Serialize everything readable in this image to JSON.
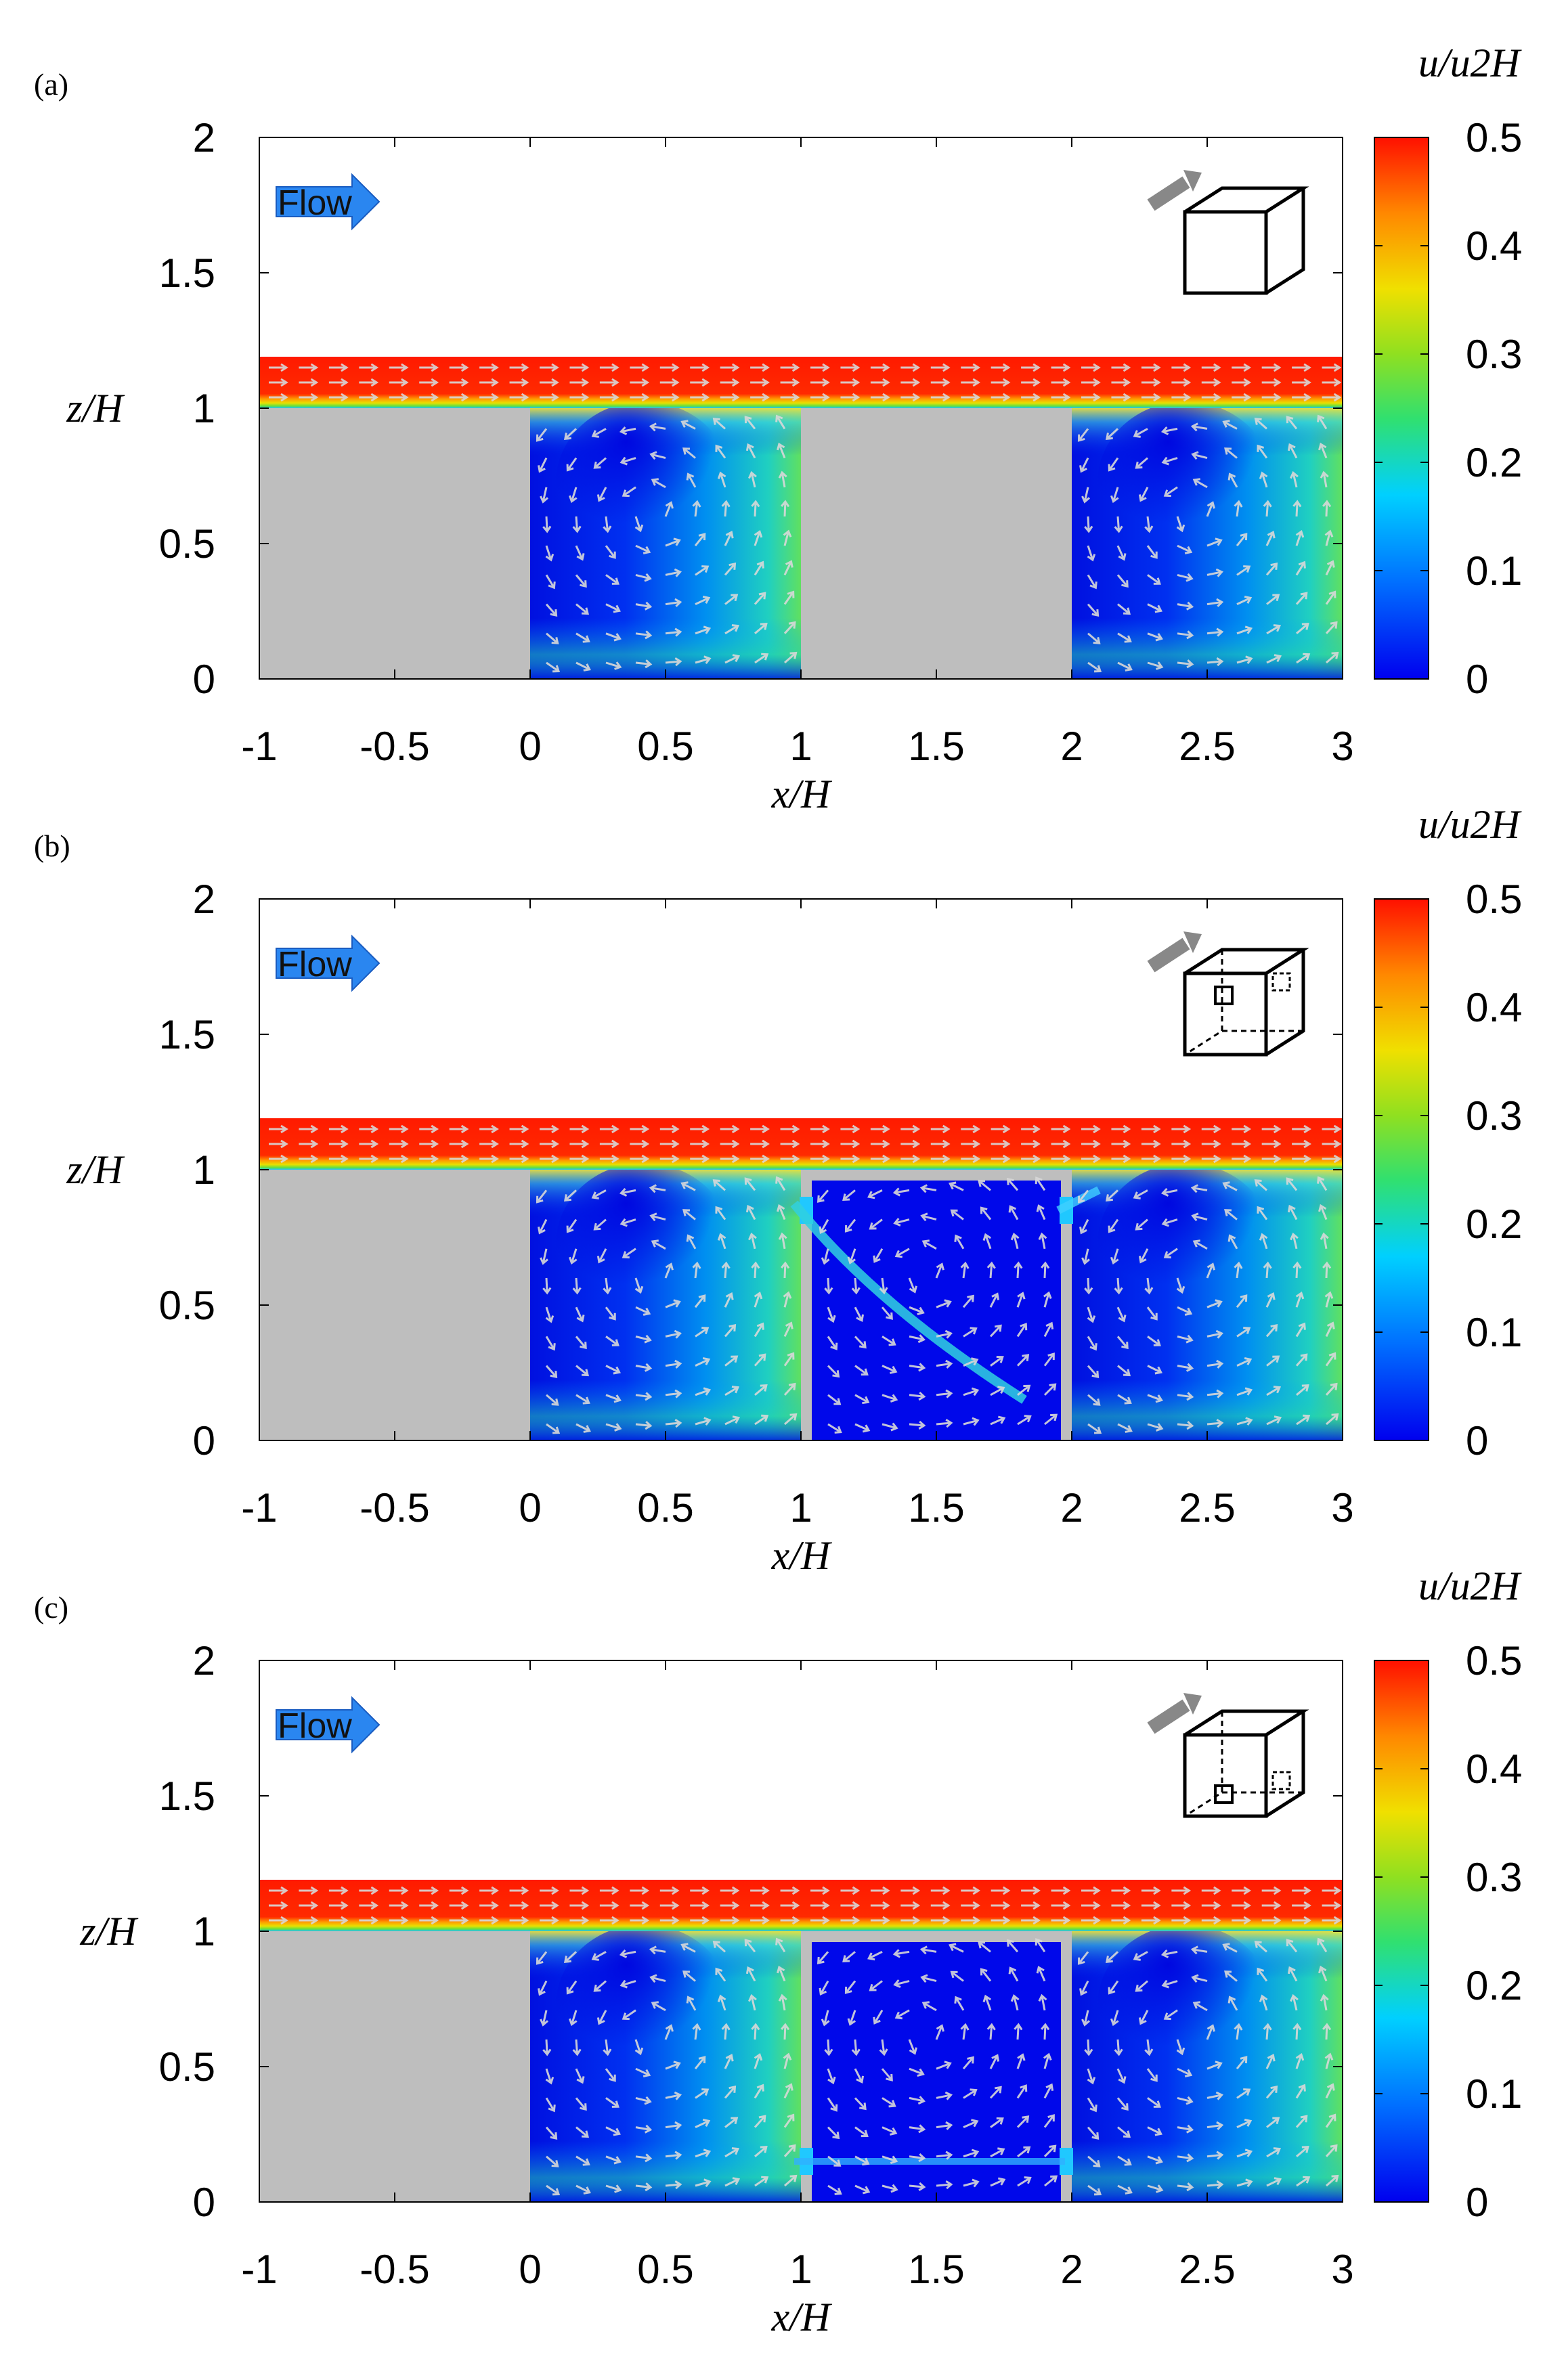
{
  "figure": {
    "panels": [
      {
        "label": "(a)",
        "xlabel": "x/H",
        "ylabel": "z/H",
        "cbar_label": "u/u2H",
        "flow_label": "Flow",
        "inner_building": false,
        "opening": "none"
      },
      {
        "label": "(b)",
        "xlabel": "x/H",
        "ylabel": "z/H",
        "cbar_label": "u/u2H",
        "flow_label": "Flow",
        "inner_building": true,
        "opening": "upper"
      },
      {
        "label": "(c)",
        "xlabel": "x/H",
        "ylabel": "z/H",
        "cbar_label": "u/u2H",
        "flow_label": "Flow",
        "inner_building": true,
        "opening": "lower"
      }
    ]
  },
  "chart_data": [
    {
      "type": "heatmap",
      "title": "(a)",
      "xlabel": "x/H",
      "ylabel": "z/H",
      "xlim": [
        -1,
        3
      ],
      "ylim": [
        0,
        2
      ],
      "xticks": [
        "-1",
        "-0.5",
        "0",
        "0.5",
        "1",
        "1.5",
        "2",
        "2.5",
        "3"
      ],
      "yticks": [
        "0",
        "0.5",
        "1",
        "1.5",
        "2"
      ],
      "colorbar": {
        "label": "u/u2H",
        "range": [
          0,
          0.5
        ],
        "ticks": [
          "0",
          "0.1",
          "0.2",
          "0.3",
          "0.4",
          "0.5"
        ]
      },
      "buildings": [
        {
          "x": [
            -1,
            0
          ],
          "z": [
            0,
            1
          ]
        },
        {
          "x": [
            1,
            2
          ],
          "z": [
            0,
            1
          ]
        }
      ],
      "canyons": [
        {
          "x": [
            0,
            1
          ]
        },
        {
          "x": [
            2,
            3
          ]
        }
      ],
      "colors": {
        "building": "#bebebe",
        "high": "#ff1a00",
        "low": "#0015e6"
      }
    },
    {
      "type": "heatmap",
      "title": "(b)",
      "xlabel": "x/H",
      "ylabel": "z/H",
      "xlim": [
        -1,
        3
      ],
      "ylim": [
        0,
        2
      ],
      "xticks": [
        "-1",
        "-0.5",
        "0",
        "0.5",
        "1",
        "1.5",
        "2",
        "2.5",
        "3"
      ],
      "yticks": [
        "0",
        "0.5",
        "1",
        "1.5",
        "2"
      ],
      "colorbar": {
        "label": "u/u2H",
        "range": [
          0,
          0.5
        ],
        "ticks": [
          "0",
          "0.1",
          "0.2",
          "0.3",
          "0.4",
          "0.5"
        ]
      },
      "buildings": [
        {
          "x": [
            -1,
            0
          ],
          "z": [
            0,
            1
          ]
        }
      ],
      "ventilated_building": {
        "x": [
          1,
          2
        ],
        "opening_z": [
          0.8,
          0.9
        ]
      },
      "canyons": [
        {
          "x": [
            0,
            1
          ]
        },
        {
          "x": [
            2,
            3
          ]
        }
      ]
    },
    {
      "type": "heatmap",
      "title": "(c)",
      "xlabel": "x/H",
      "ylabel": "z/H",
      "xlim": [
        -1,
        3
      ],
      "ylim": [
        0,
        2
      ],
      "xticks": [
        "-1",
        "-0.5",
        "0",
        "0.5",
        "1",
        "1.5",
        "2",
        "2.5",
        "3"
      ],
      "yticks": [
        "0",
        "0.5",
        "1",
        "1.5",
        "2"
      ],
      "colorbar": {
        "label": "u/u2H",
        "range": [
          0,
          0.5
        ],
        "ticks": [
          "0",
          "0.1",
          "0.2",
          "0.3",
          "0.4",
          "0.5"
        ]
      },
      "buildings": [
        {
          "x": [
            -1,
            0
          ],
          "z": [
            0,
            1
          ]
        }
      ],
      "ventilated_building": {
        "x": [
          1,
          2
        ],
        "opening_z": [
          0.1,
          0.2
        ]
      },
      "canyons": [
        {
          "x": [
            0,
            1
          ]
        },
        {
          "x": [
            2,
            3
          ]
        }
      ]
    }
  ]
}
